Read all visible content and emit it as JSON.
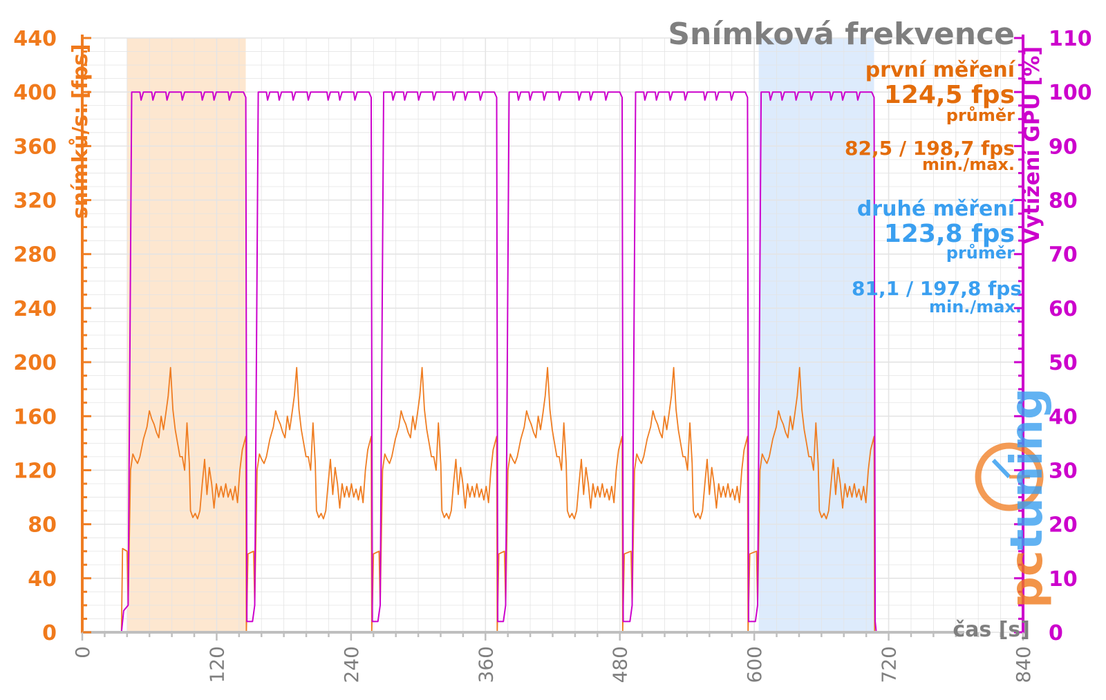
{
  "chart_data": {
    "type": "line",
    "title": "Snímková frekvence",
    "xlabel": "čas [s]",
    "ylabel_left": "snímků/s: [fps]",
    "ylabel_right": "Vytížení GPU [%]",
    "xlim": [
      0,
      840
    ],
    "ylim_left": [
      0,
      440
    ],
    "ylim_right": [
      0,
      110
    ],
    "x_ticks": [
      "0",
      "120",
      "240",
      "360",
      "480",
      "600",
      "720",
      "840"
    ],
    "y_ticks_left": [
      "0",
      "40",
      "80",
      "120",
      "160",
      "200",
      "240",
      "280",
      "320",
      "360",
      "400",
      "440"
    ],
    "y_ticks_right": [
      "0",
      "10",
      "20",
      "30",
      "40",
      "50",
      "60",
      "70",
      "80",
      "90",
      "100",
      "110"
    ],
    "grid": true,
    "highlight_regions": [
      {
        "name": "první měření",
        "x_start": 40,
        "x_end": 146,
        "color": "#fde3c8"
      },
      {
        "name": "druhé měření",
        "x_start": 604,
        "x_end": 707,
        "color": "#d7e7fb"
      }
    ],
    "runs": [
      {
        "start": 41,
        "end": 146
      },
      {
        "start": 154,
        "end": 258
      },
      {
        "start": 266,
        "end": 370
      },
      {
        "start": 378,
        "end": 482
      },
      {
        "start": 491,
        "end": 594
      },
      {
        "start": 603,
        "end": 707
      }
    ],
    "fps_profile": [
      [
        0.0,
        20
      ],
      [
        0.02,
        120
      ],
      [
        0.04,
        132
      ],
      [
        0.06,
        128
      ],
      [
        0.08,
        125
      ],
      [
        0.1,
        130
      ],
      [
        0.13,
        143
      ],
      [
        0.16,
        152
      ],
      [
        0.18,
        164
      ],
      [
        0.2,
        158
      ],
      [
        0.22,
        154
      ],
      [
        0.24,
        148
      ],
      [
        0.26,
        144
      ],
      [
        0.28,
        160
      ],
      [
        0.3,
        150
      ],
      [
        0.32,
        162
      ],
      [
        0.34,
        175
      ],
      [
        0.36,
        196
      ],
      [
        0.38,
        165
      ],
      [
        0.4,
        150
      ],
      [
        0.42,
        140
      ],
      [
        0.44,
        130
      ],
      [
        0.46,
        130
      ],
      [
        0.48,
        120
      ],
      [
        0.5,
        155
      ],
      [
        0.52,
        125
      ],
      [
        0.53,
        90
      ],
      [
        0.55,
        85
      ],
      [
        0.57,
        88
      ],
      [
        0.59,
        84
      ],
      [
        0.61,
        90
      ],
      [
        0.63,
        110
      ],
      [
        0.65,
        128
      ],
      [
        0.67,
        102
      ],
      [
        0.69,
        122
      ],
      [
        0.71,
        110
      ],
      [
        0.73,
        92
      ],
      [
        0.75,
        110
      ],
      [
        0.77,
        100
      ],
      [
        0.79,
        108
      ],
      [
        0.81,
        100
      ],
      [
        0.83,
        110
      ],
      [
        0.85,
        100
      ],
      [
        0.87,
        106
      ],
      [
        0.89,
        98
      ],
      [
        0.91,
        108
      ],
      [
        0.93,
        96
      ],
      [
        0.95,
        120
      ],
      [
        0.97,
        135
      ],
      [
        1.0,
        145
      ]
    ],
    "gpu_profile": [
      [
        0.0,
        5
      ],
      [
        0.03,
        100
      ],
      [
        0.1,
        100
      ],
      [
        0.11,
        98.5
      ],
      [
        0.13,
        100
      ],
      [
        0.2,
        100
      ],
      [
        0.21,
        98.5
      ],
      [
        0.23,
        100
      ],
      [
        0.32,
        100
      ],
      [
        0.33,
        98.5
      ],
      [
        0.35,
        100
      ],
      [
        0.45,
        100
      ],
      [
        0.46,
        98.5
      ],
      [
        0.48,
        100
      ],
      [
        0.62,
        100
      ],
      [
        0.63,
        98.5
      ],
      [
        0.65,
        100
      ],
      [
        0.72,
        100
      ],
      [
        0.73,
        98.5
      ],
      [
        0.75,
        100
      ],
      [
        0.85,
        100
      ],
      [
        0.86,
        98.5
      ],
      [
        0.88,
        100
      ],
      [
        0.98,
        100
      ],
      [
        1.0,
        99
      ]
    ],
    "series": [
      {
        "name": "snímků/s: [fps]",
        "color": "#ef7d22",
        "axis": "left"
      },
      {
        "name": "Vytížení GPU [%]",
        "color": "#cc00cc",
        "axis": "right"
      }
    ]
  },
  "annotations": {
    "first": {
      "label": "první měření",
      "avg": "124,5 fps",
      "avg_label": "průměr",
      "minmax": "82,5 / 198,7 fps",
      "minmax_label": "min./max.",
      "color": "#e36c0a"
    },
    "second": {
      "label": "druhé měření",
      "avg": "123,8 fps",
      "avg_label": "průměr",
      "minmax": "81,1 / 197,8 fps",
      "minmax_label": "min./max.",
      "color": "#3a9ff0"
    }
  },
  "logo": {
    "text": "pctuning",
    "color_pc": "#f07a1c",
    "color_tuning": "#3a9ff0"
  },
  "colors": {
    "fps": "#ef7d22",
    "gpu": "#cc00cc",
    "grid": "#e4e4e4",
    "axis": "#bfbfbf"
  }
}
